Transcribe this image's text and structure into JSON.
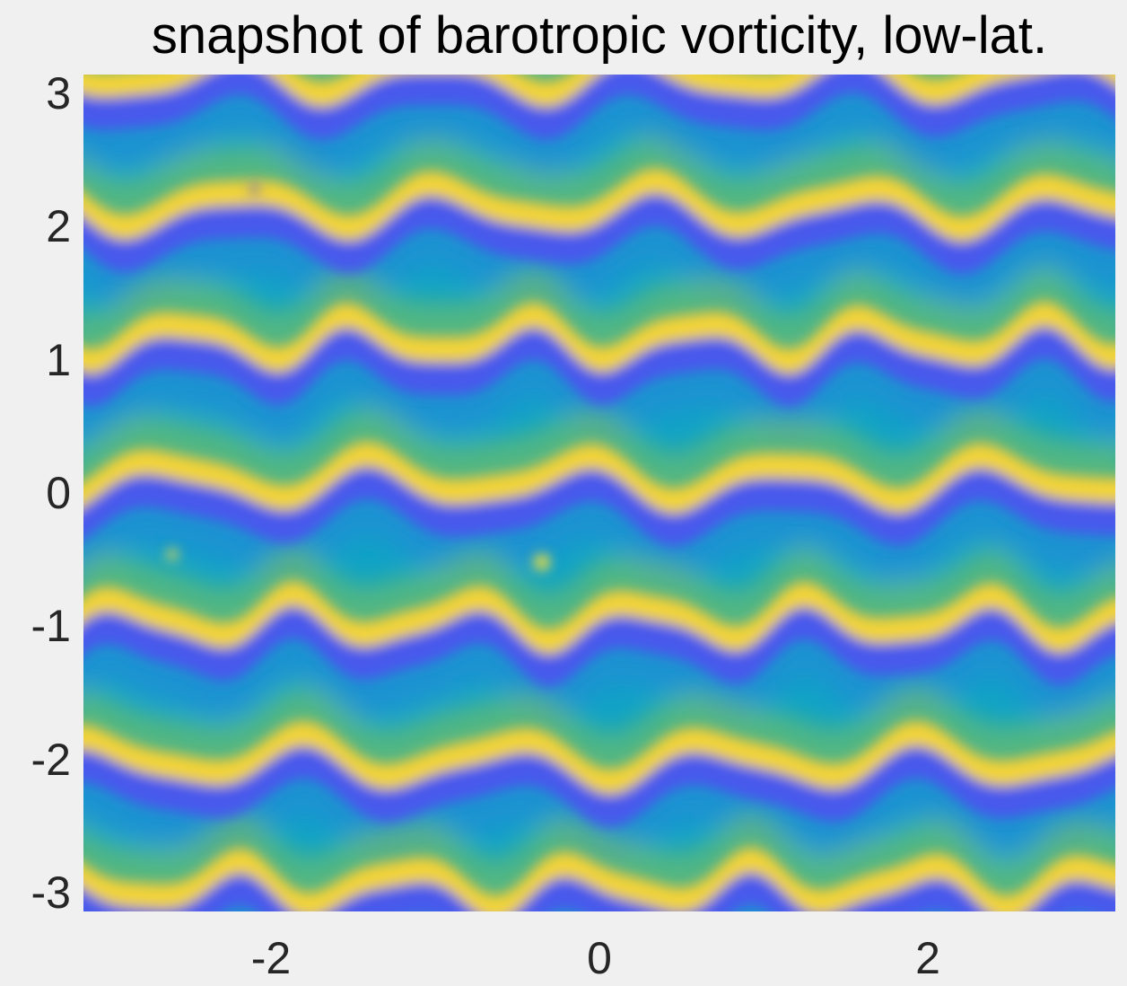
{
  "chart_data": {
    "type": "heatmap",
    "title": "snapshot of barotropic vorticity, low-lat.",
    "xlabel": "",
    "ylabel": "",
    "xlim": [
      -3.14159,
      3.14159
    ],
    "ylim": [
      -3.14159,
      3.14159
    ],
    "xticks": [
      -2,
      0,
      2
    ],
    "xtick_labels": [
      "-2",
      "0",
      "2"
    ],
    "yticks": [
      3,
      2,
      1,
      0,
      -1,
      -2,
      -3
    ],
    "ytick_labels": [
      "3",
      "2",
      "1",
      "0",
      "-1",
      "-2",
      "-3"
    ],
    "colormap": "parula",
    "colorbar": false,
    "grid": false,
    "palette": {
      "background": "#0fa3c6",
      "low": "#4b55ee",
      "mid_low": "#2a7fe0",
      "mid": "#1ab6c0",
      "mid_high": "#8bc84a",
      "high": "#f0c838",
      "peak": "#fde234"
    },
    "band_centers_y": [
      2.05,
      1.05,
      0.0,
      -1.05,
      -2.1,
      -3.05,
      3.05
    ]
  }
}
